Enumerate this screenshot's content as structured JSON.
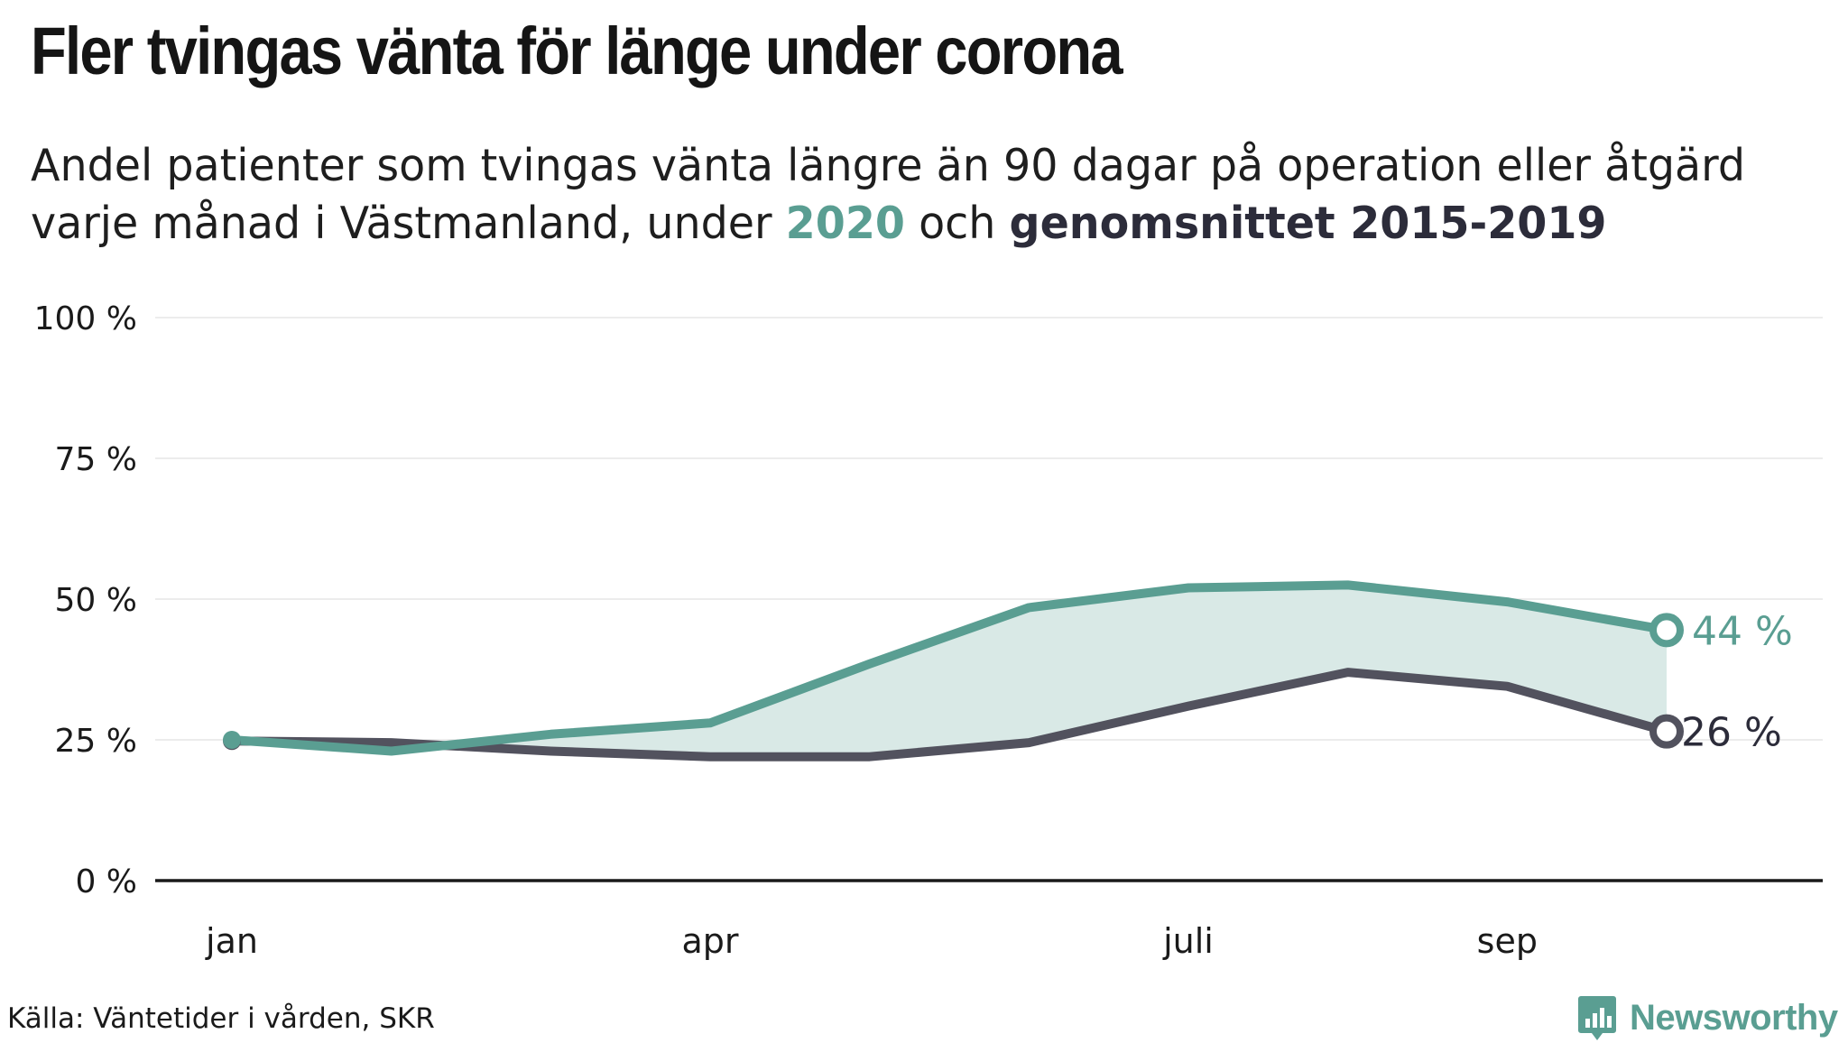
{
  "title": "Fler tvingas vänta för länge under corona",
  "subtitle": {
    "line1": "Andel patienter som tvingas vänta längre än 90 dagar på operation eller åtgärd",
    "line2_pre": "varje månad i Västmanland, under ",
    "highlight_2020": "2020",
    "line2_mid": " och ",
    "highlight_avg": "genomsnittet 2015-2019"
  },
  "colors": {
    "series_2020": "#5a9e92",
    "series_avg": "#52525e",
    "fill": "#d9e9e6",
    "grid": "#e6e6e6",
    "axis": "#1a1a1a"
  },
  "chart_data": {
    "type": "line",
    "x": [
      1,
      2,
      3,
      4,
      5,
      6,
      7,
      8,
      9,
      10
    ],
    "x_ticks": [
      {
        "x": 1,
        "label": "jan"
      },
      {
        "x": 4,
        "label": "apr"
      },
      {
        "x": 7,
        "label": "juli"
      },
      {
        "x": 9,
        "label": "sep"
      }
    ],
    "series": [
      {
        "name": "2020",
        "values": [
          25,
          23,
          26,
          28,
          38.5,
          48.5,
          52,
          52.5,
          49.5,
          44.5
        ],
        "end_label": "44 %"
      },
      {
        "name": "genomsnittet 2015-2019",
        "values": [
          24.8,
          24.5,
          23,
          22,
          22,
          24.5,
          31,
          37,
          34.5,
          26.5
        ],
        "end_label": "26 %"
      }
    ],
    "ylim": [
      0,
      100
    ],
    "y_ticks": [
      {
        "value": 0,
        "label": "0 %"
      },
      {
        "value": 25,
        "label": "25 %"
      },
      {
        "value": 50,
        "label": "50 %"
      },
      {
        "value": 75,
        "label": "75 %"
      },
      {
        "value": 100,
        "label": "100 %"
      }
    ],
    "grid": true,
    "shade_between_series": true
  },
  "source": "Källa: Väntetider i vården, SKR",
  "logo": {
    "text": "Newsworthy",
    "icon": "newsworthy-logo-icon"
  }
}
